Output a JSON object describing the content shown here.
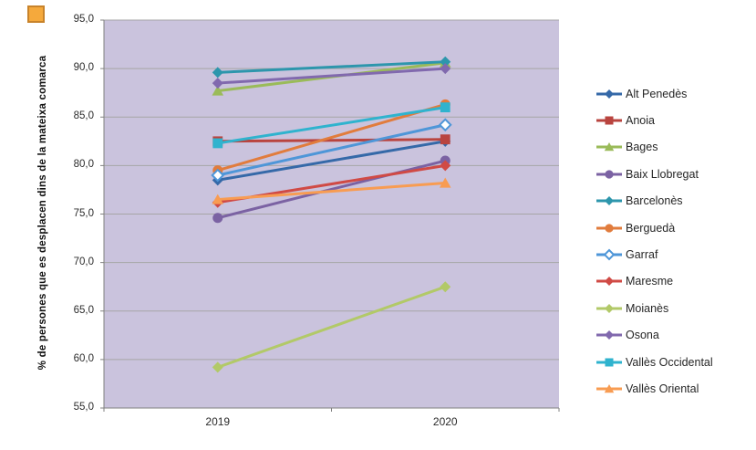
{
  "page": {
    "background": "#ffffff",
    "corner_square": {
      "fill": "#F5A93C",
      "border": "#C8832B"
    }
  },
  "chart_data": {
    "type": "line",
    "title": "",
    "xlabel": "",
    "ylabel": "% de persones que es desplacen dins de la mateixa comarca",
    "categories": [
      "2019",
      "2020"
    ],
    "ylim": [
      55,
      95
    ],
    "ytick_step": 5,
    "ytick_labels": [
      "95,0",
      "90,0",
      "85,0",
      "80,0",
      "75,0",
      "70,0",
      "65,0",
      "60,0",
      "55,0"
    ],
    "grid": true,
    "legend_position": "right",
    "plot_bg": "#CAC3DD",
    "grid_color": "#A6A6A6",
    "axis_color": "#808080",
    "series": [
      {
        "name": "Alt Penedès",
        "color": "#3569A8",
        "marker": "diamond",
        "values": [
          78.5,
          82.5
        ]
      },
      {
        "name": "Anoia",
        "color": "#B9443F",
        "marker": "square",
        "values": [
          82.5,
          82.7
        ]
      },
      {
        "name": "Bages",
        "color": "#9ABB59",
        "marker": "triangle",
        "values": [
          87.7,
          90.6
        ]
      },
      {
        "name": "Baix Llobregat",
        "color": "#7B62A3",
        "marker": "circle",
        "values": [
          74.6,
          80.5
        ]
      },
      {
        "name": "Barcelonès",
        "color": "#2D96AC",
        "marker": "diamond",
        "values": [
          89.6,
          90.7
        ]
      },
      {
        "name": "Berguedà",
        "color": "#E17C3D",
        "marker": "circle",
        "values": [
          79.5,
          86.3
        ]
      },
      {
        "name": "Garraf",
        "color": "#4E96D8",
        "marker": "diamond-open",
        "values": [
          79.0,
          84.2
        ]
      },
      {
        "name": "Maresme",
        "color": "#D04A45",
        "marker": "diamond",
        "values": [
          76.2,
          80.0
        ]
      },
      {
        "name": "Moianès",
        "color": "#B2C968",
        "marker": "diamond",
        "values": [
          59.2,
          67.5
        ]
      },
      {
        "name": "Osona",
        "color": "#8169AE",
        "marker": "diamond",
        "values": [
          88.5,
          90.0
        ]
      },
      {
        "name": "Vallès Occidental",
        "color": "#2FB3CE",
        "marker": "square",
        "values": [
          82.3,
          86.0
        ]
      },
      {
        "name": "Vallès Oriental",
        "color": "#F89C52",
        "marker": "triangle",
        "values": [
          76.5,
          78.2
        ]
      }
    ]
  }
}
